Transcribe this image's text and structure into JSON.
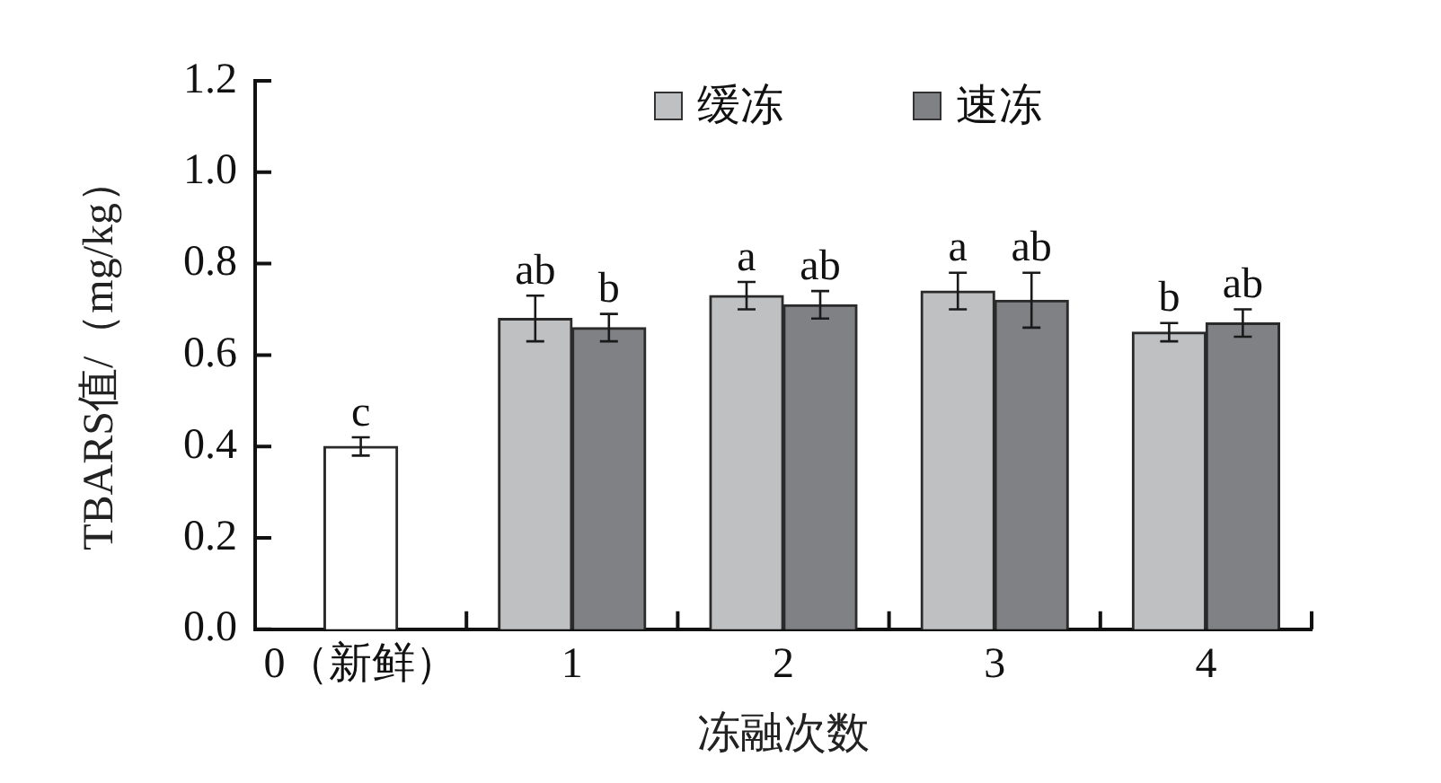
{
  "chart_data": {
    "type": "bar",
    "categories": [
      "0（新鲜）",
      "1",
      "2",
      "3",
      "4"
    ],
    "xlabel": "冻融次数",
    "ylabel": "TBARS值/（mg/kg）",
    "ylim": [
      0,
      1.2
    ],
    "yticks": [
      {
        "value": 0,
        "label": "0.0"
      },
      0.2,
      0.4,
      0.6,
      0.8,
      {
        "value": 1,
        "label": "1.0"
      },
      1.2
    ],
    "legend": "top",
    "series": [
      {
        "color": "#ffffff",
        "values": [
          0.4,
          null,
          null,
          null,
          null
        ],
        "errors": [
          0.02,
          null,
          null,
          null,
          null
        ],
        "value_labels": [
          "c",
          null,
          null,
          null,
          null
        ]
      },
      {
        "name": "缓冻",
        "color": "#bfc0c2",
        "values": [
          null,
          0.68,
          0.73,
          0.74,
          0.65
        ],
        "errors": [
          null,
          0.05,
          0.03,
          0.04,
          0.02
        ],
        "value_labels": [
          null,
          "ab",
          "a",
          "a",
          "b"
        ]
      },
      {
        "name": "速冻",
        "color": "#808184",
        "values": [
          null,
          0.66,
          0.71,
          0.72,
          0.67
        ],
        "errors": [
          null,
          0.03,
          0.03,
          0.06,
          0.03
        ],
        "value_labels": [
          null,
          "b",
          "ab",
          "ab",
          "ab"
        ]
      }
    ]
  }
}
